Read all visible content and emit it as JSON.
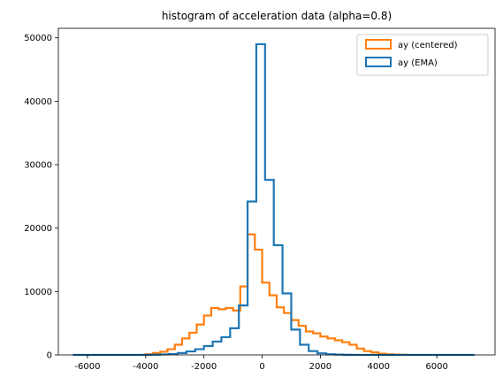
{
  "chart_data": {
    "type": "histogram",
    "title": "histogram of acceleration data (alpha=0.8)",
    "xlabel": "",
    "ylabel": "",
    "xlim": [
      -7000,
      8000
    ],
    "ylim": [
      0,
      51500
    ],
    "x_ticks": [
      -6000,
      -4000,
      -2000,
      0,
      2000,
      4000,
      6000
    ],
    "y_ticks": [
      0,
      10000,
      20000,
      30000,
      40000,
      50000
    ],
    "grid": false,
    "legend_position": "top-right",
    "series": [
      {
        "name": "ay (centered)",
        "color": "#ff7f0e",
        "style": "step",
        "bin_edges": [
          -4000,
          -3750,
          -3500,
          -3250,
          -3000,
          -2750,
          -2500,
          -2250,
          -2000,
          -1750,
          -1500,
          -1250,
          -1000,
          -750,
          -500,
          -250,
          0,
          250,
          500,
          750,
          1000,
          1250,
          1500,
          1750,
          2000,
          2250,
          2500,
          2750,
          3000,
          3250,
          3500,
          3750,
          4000,
          4250,
          4500,
          4750,
          5000
        ],
        "counts": [
          100,
          300,
          500,
          900,
          1600,
          2600,
          3500,
          4800,
          6200,
          7400,
          7200,
          7400,
          7000,
          10800,
          19000,
          16600,
          11400,
          9400,
          7500,
          6600,
          5500,
          4600,
          3700,
          3400,
          2900,
          2600,
          2300,
          2000,
          1600,
          1000,
          600,
          400,
          200,
          100,
          50,
          20
        ]
      },
      {
        "name": "ay (EMA)",
        "color": "#1f77b4",
        "style": "step",
        "bin_edges": [
          -6500,
          -6200,
          -5900,
          -5600,
          -5300,
          -5000,
          -4700,
          -4400,
          -4100,
          -3800,
          -3500,
          -3200,
          -2900,
          -2600,
          -2300,
          -2000,
          -1700,
          -1400,
          -1100,
          -800,
          -500,
          -200,
          100,
          400,
          700,
          1000,
          1300,
          1600,
          1900,
          2200,
          2500,
          2800,
          3100,
          3400,
          3700,
          4000,
          4300,
          4600,
          4900,
          5200,
          5500,
          5800,
          6100,
          6400,
          6700,
          7000,
          7300
        ],
        "counts": [
          0,
          0,
          0,
          0,
          0,
          0,
          0,
          5,
          15,
          40,
          80,
          150,
          300,
          550,
          900,
          1400,
          2100,
          2800,
          4200,
          7800,
          24200,
          49000,
          27600,
          17300,
          9700,
          4000,
          1600,
          600,
          250,
          100,
          50,
          20,
          10,
          5,
          0,
          0,
          0,
          0,
          0,
          0,
          0,
          0,
          0,
          0,
          0,
          0
        ]
      }
    ]
  }
}
